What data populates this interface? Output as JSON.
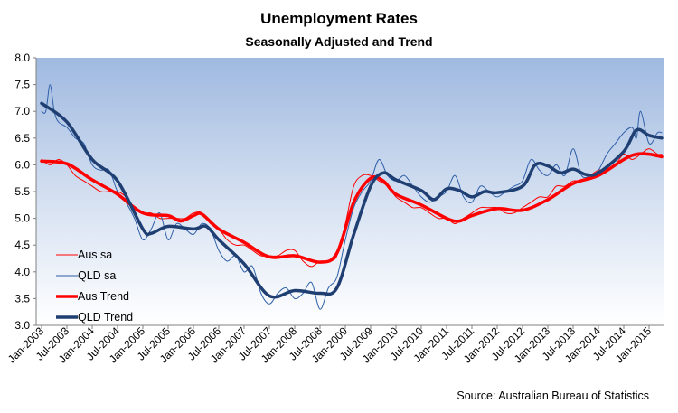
{
  "chart_data": {
    "type": "line",
    "title": "Unemployment Rates",
    "subtitle": "Seasonally Adjusted and Trend",
    "source": "Source: Australian Bureau of Statistics",
    "ylim": [
      3.0,
      8.0
    ],
    "y_ticks": [
      "3.0",
      "3.5",
      "4.0",
      "4.5",
      "5.0",
      "5.5",
      "6.0",
      "6.5",
      "7.0",
      "7.5",
      "8.0"
    ],
    "x_ticks": [
      "Jan-2003",
      "Jul-2003",
      "Jan-2004",
      "Jul-2004",
      "Jan-2005",
      "Jul-2005",
      "Jan-2006",
      "Jul-2006",
      "Jan-2007",
      "Jul-2007",
      "Jan-2008",
      "Jul-2008",
      "Jan-2009",
      "Jul-2009",
      "Jan-2010",
      "Jul-2010",
      "Jan-2011",
      "Jul-2011",
      "Jan-2012",
      "Jul-2012",
      "Jan-2013",
      "Jul-2013",
      "Jan-2014",
      "Jul-2014",
      "Jan-2015"
    ],
    "x_start": "Jan-2003",
    "x_end": "Apr-2015",
    "grid": false,
    "background": "gradient blue-to-white",
    "legend": "bottom-left",
    "series": [
      {
        "name": "Aus sa",
        "color": "#ff0000",
        "style": "thin",
        "points": [
          [
            "Jan-2003",
            6.1
          ],
          [
            "Mar-2003",
            6.0
          ],
          [
            "May-2003",
            6.1
          ],
          [
            "Jul-2003",
            6.0
          ],
          [
            "Sep-2003",
            5.8
          ],
          [
            "Nov-2003",
            5.7
          ],
          [
            "Jan-2004",
            5.6
          ],
          [
            "Mar-2004",
            5.5
          ],
          [
            "May-2004",
            5.5
          ],
          [
            "Jul-2004",
            5.5
          ],
          [
            "Sep-2004",
            5.4
          ],
          [
            "Nov-2004",
            5.2
          ],
          [
            "Jan-2005",
            5.1
          ],
          [
            "Mar-2005",
            5.1
          ],
          [
            "May-2005",
            5.0
          ],
          [
            "Jul-2005",
            5.0
          ],
          [
            "Sep-2005",
            5.0
          ],
          [
            "Nov-2005",
            5.0
          ],
          [
            "Jan-2006",
            5.1
          ],
          [
            "Mar-2006",
            5.1
          ],
          [
            "May-2006",
            4.9
          ],
          [
            "Jul-2006",
            4.8
          ],
          [
            "Sep-2006",
            4.6
          ],
          [
            "Nov-2006",
            4.5
          ],
          [
            "Jan-2007",
            4.5
          ],
          [
            "Mar-2007",
            4.4
          ],
          [
            "May-2007",
            4.3
          ],
          [
            "Jul-2007",
            4.3
          ],
          [
            "Sep-2007",
            4.3
          ],
          [
            "Nov-2007",
            4.4
          ],
          [
            "Jan-2008",
            4.4
          ],
          [
            "Mar-2008",
            4.2
          ],
          [
            "May-2008",
            4.1
          ],
          [
            "Jul-2008",
            4.2
          ],
          [
            "Sep-2008",
            4.2
          ],
          [
            "Nov-2008",
            4.3
          ],
          [
            "Jan-2009",
            4.9
          ],
          [
            "Mar-2009",
            5.6
          ],
          [
            "May-2009",
            5.8
          ],
          [
            "Jul-2009",
            5.8
          ],
          [
            "Sep-2009",
            5.7
          ],
          [
            "Nov-2009",
            5.6
          ],
          [
            "Jan-2010",
            5.4
          ],
          [
            "Mar-2010",
            5.3
          ],
          [
            "May-2010",
            5.2
          ],
          [
            "Jul-2010",
            5.2
          ],
          [
            "Sep-2010",
            5.1
          ],
          [
            "Nov-2010",
            5.0
          ],
          [
            "Jan-2011",
            5.0
          ],
          [
            "Mar-2011",
            4.9
          ],
          [
            "May-2011",
            5.0
          ],
          [
            "Jul-2011",
            5.1
          ],
          [
            "Sep-2011",
            5.2
          ],
          [
            "Nov-2011",
            5.2
          ],
          [
            "Jan-2012",
            5.2
          ],
          [
            "Mar-2012",
            5.1
          ],
          [
            "May-2012",
            5.1
          ],
          [
            "Jul-2012",
            5.2
          ],
          [
            "Sep-2012",
            5.3
          ],
          [
            "Nov-2012",
            5.4
          ],
          [
            "Jan-2013",
            5.4
          ],
          [
            "Mar-2013",
            5.6
          ],
          [
            "May-2013",
            5.6
          ],
          [
            "Jul-2013",
            5.7
          ],
          [
            "Sep-2013",
            5.7
          ],
          [
            "Nov-2013",
            5.8
          ],
          [
            "Jan-2014",
            5.9
          ],
          [
            "Mar-2014",
            5.9
          ],
          [
            "May-2014",
            6.0
          ],
          [
            "Jul-2014",
            6.2
          ],
          [
            "Sep-2014",
            6.1
          ],
          [
            "Nov-2014",
            6.2
          ],
          [
            "Jan-2015",
            6.3
          ],
          [
            "Mar-2015",
            6.2
          ],
          [
            "Apr-2015",
            6.2
          ]
        ]
      },
      {
        "name": "QLD sa",
        "color": "#2e5fa8",
        "style": "thin",
        "points": [
          [
            "Jan-2003",
            7.0
          ],
          [
            "Feb-2003",
            7.0
          ],
          [
            "Mar-2003",
            7.5
          ],
          [
            "Apr-2003",
            7.0
          ],
          [
            "May-2003",
            6.8
          ],
          [
            "Jul-2003",
            6.7
          ],
          [
            "Sep-2003",
            6.5
          ],
          [
            "Nov-2003",
            6.4
          ],
          [
            "Jan-2004",
            6.0
          ],
          [
            "Mar-2004",
            5.9
          ],
          [
            "May-2004",
            5.9
          ],
          [
            "Jul-2004",
            5.5
          ],
          [
            "Sep-2004",
            5.3
          ],
          [
            "Nov-2004",
            5.0
          ],
          [
            "Jan-2005",
            4.6
          ],
          [
            "Mar-2005",
            4.8
          ],
          [
            "May-2005",
            5.1
          ],
          [
            "Jul-2005",
            4.6
          ],
          [
            "Sep-2005",
            4.9
          ],
          [
            "Nov-2005",
            4.8
          ],
          [
            "Jan-2006",
            4.7
          ],
          [
            "Mar-2006",
            4.9
          ],
          [
            "May-2006",
            4.8
          ],
          [
            "Jul-2006",
            4.4
          ],
          [
            "Sep-2006",
            4.2
          ],
          [
            "Nov-2006",
            4.3
          ],
          [
            "Jan-2007",
            4.0
          ],
          [
            "Mar-2007",
            4.1
          ],
          [
            "May-2007",
            3.6
          ],
          [
            "Jul-2007",
            3.4
          ],
          [
            "Sep-2007",
            3.6
          ],
          [
            "Nov-2007",
            3.7
          ],
          [
            "Jan-2008",
            3.5
          ],
          [
            "Mar-2008",
            3.6
          ],
          [
            "May-2008",
            3.8
          ],
          [
            "Jul-2008",
            3.3
          ],
          [
            "Sep-2008",
            3.7
          ],
          [
            "Nov-2008",
            3.9
          ],
          [
            "Jan-2009",
            4.6
          ],
          [
            "Mar-2009",
            5.2
          ],
          [
            "May-2009",
            5.5
          ],
          [
            "Jul-2009",
            5.7
          ],
          [
            "Sep-2009",
            6.1
          ],
          [
            "Nov-2009",
            5.8
          ],
          [
            "Jan-2010",
            5.7
          ],
          [
            "Mar-2010",
            5.8
          ],
          [
            "May-2010",
            5.6
          ],
          [
            "Jul-2010",
            5.4
          ],
          [
            "Sep-2010",
            5.3
          ],
          [
            "Nov-2010",
            5.4
          ],
          [
            "Jan-2011",
            5.5
          ],
          [
            "Mar-2011",
            5.8
          ],
          [
            "May-2011",
            5.4
          ],
          [
            "Jul-2011",
            5.3
          ],
          [
            "Sep-2011",
            5.6
          ],
          [
            "Nov-2011",
            5.5
          ],
          [
            "Jan-2012",
            5.4
          ],
          [
            "Mar-2012",
            5.5
          ],
          [
            "May-2012",
            5.6
          ],
          [
            "Jul-2012",
            5.7
          ],
          [
            "Sep-2012",
            6.1
          ],
          [
            "Nov-2012",
            5.9
          ],
          [
            "Jan-2013",
            5.8
          ],
          [
            "Mar-2013",
            6.0
          ],
          [
            "May-2013",
            5.8
          ],
          [
            "Jul-2013",
            6.3
          ],
          [
            "Sep-2013",
            5.8
          ],
          [
            "Nov-2013",
            5.8
          ],
          [
            "Jan-2014",
            5.9
          ],
          [
            "Mar-2014",
            6.2
          ],
          [
            "May-2014",
            6.4
          ],
          [
            "Jul-2014",
            6.6
          ],
          [
            "Sep-2014",
            6.7
          ],
          [
            "Oct-2014",
            6.5
          ],
          [
            "Nov-2014",
            7.0
          ],
          [
            "Jan-2015",
            6.4
          ],
          [
            "Mar-2015",
            6.6
          ],
          [
            "Apr-2015",
            6.6
          ]
        ]
      },
      {
        "name": "Aus Trend",
        "color": "#ff0000",
        "style": "thick",
        "points": [
          [
            "Jan-2003",
            6.07
          ],
          [
            "Jul-2003",
            6.02
          ],
          [
            "Jan-2004",
            5.72
          ],
          [
            "Jul-2004",
            5.45
          ],
          [
            "Jan-2005",
            5.1
          ],
          [
            "Jul-2005",
            5.05
          ],
          [
            "Oct-2005",
            4.95
          ],
          [
            "Jan-2006",
            5.05
          ],
          [
            "Mar-2006",
            5.08
          ],
          [
            "Jul-2006",
            4.8
          ],
          [
            "Jan-2007",
            4.55
          ],
          [
            "Jul-2007",
            4.28
          ],
          [
            "Jan-2008",
            4.3
          ],
          [
            "Jul-2008",
            4.18
          ],
          [
            "Nov-2008",
            4.35
          ],
          [
            "Mar-2009",
            5.3
          ],
          [
            "Jul-2009",
            5.75
          ],
          [
            "Oct-2009",
            5.7
          ],
          [
            "Jan-2010",
            5.45
          ],
          [
            "Jul-2010",
            5.25
          ],
          [
            "Jan-2011",
            5.0
          ],
          [
            "Apr-2011",
            4.95
          ],
          [
            "Jul-2011",
            5.05
          ],
          [
            "Jan-2012",
            5.18
          ],
          [
            "Jul-2012",
            5.15
          ],
          [
            "Jan-2013",
            5.35
          ],
          [
            "Jul-2013",
            5.65
          ],
          [
            "Jan-2014",
            5.8
          ],
          [
            "Jul-2014",
            6.1
          ],
          [
            "Oct-2014",
            6.2
          ],
          [
            "Jan-2015",
            6.2
          ],
          [
            "Apr-2015",
            6.15
          ]
        ]
      },
      {
        "name": "QLD Trend",
        "color": "#1f3f73",
        "style": "thick",
        "points": [
          [
            "Jan-2003",
            7.15
          ],
          [
            "Jul-2003",
            6.8
          ],
          [
            "Jan-2004",
            6.1
          ],
          [
            "Jul-2004",
            5.7
          ],
          [
            "Jan-2005",
            4.8
          ],
          [
            "Mar-2005",
            4.72
          ],
          [
            "Jul-2005",
            4.85
          ],
          [
            "Jan-2006",
            4.8
          ],
          [
            "Apr-2006",
            4.85
          ],
          [
            "Jul-2006",
            4.6
          ],
          [
            "Jan-2007",
            4.15
          ],
          [
            "Jul-2007",
            3.55
          ],
          [
            "Jan-2008",
            3.65
          ],
          [
            "Jul-2008",
            3.6
          ],
          [
            "Nov-2008",
            3.7
          ],
          [
            "Mar-2009",
            4.7
          ],
          [
            "Jul-2009",
            5.6
          ],
          [
            "Oct-2009",
            5.85
          ],
          [
            "Jan-2010",
            5.72
          ],
          [
            "Jul-2010",
            5.52
          ],
          [
            "Oct-2010",
            5.35
          ],
          [
            "Jan-2011",
            5.55
          ],
          [
            "Apr-2011",
            5.52
          ],
          [
            "Jul-2011",
            5.4
          ],
          [
            "Oct-2011",
            5.5
          ],
          [
            "Jan-2012",
            5.48
          ],
          [
            "Jul-2012",
            5.6
          ],
          [
            "Oct-2012",
            6.0
          ],
          [
            "Jan-2013",
            5.98
          ],
          [
            "Apr-2013",
            5.85
          ],
          [
            "Jul-2013",
            5.92
          ],
          [
            "Oct-2013",
            5.82
          ],
          [
            "Jan-2014",
            5.85
          ],
          [
            "Jul-2014",
            6.25
          ],
          [
            "Oct-2014",
            6.65
          ],
          [
            "Jan-2015",
            6.55
          ],
          [
            "Apr-2015",
            6.5
          ]
        ]
      }
    ]
  }
}
